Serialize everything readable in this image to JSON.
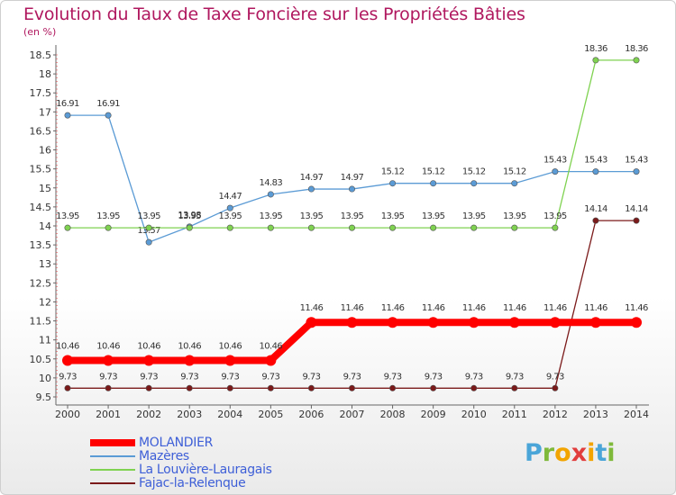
{
  "title": "Evolution du Taux de Taxe Foncière sur les Propriétés Bâties",
  "unit": "(en %)",
  "logo": "Proxiti",
  "chart_data": {
    "type": "line",
    "title": "Evolution du Taux de Taxe Foncière sur les Propriétés Bâties",
    "ylabel": "(en %)",
    "xlabel": "",
    "ylim": [
      9.5,
      18.5
    ],
    "yticks": [
      "9.5",
      "10",
      "10.5",
      "11",
      "11.5",
      "12",
      "12.5",
      "13",
      "13.5",
      "14",
      "14.5",
      "15",
      "15.5",
      "16",
      "16.5",
      "17",
      "17.5",
      "18",
      "18.5"
    ],
    "x": [
      "2000",
      "2001",
      "2002",
      "2003",
      "2004",
      "2005",
      "2006",
      "2007",
      "2008",
      "2009",
      "2010",
      "2011",
      "2012",
      "2013",
      "2014"
    ],
    "series": [
      {
        "name": "MOLANDIER",
        "color": "#ff0000",
        "bold": true,
        "values": [
          10.46,
          10.46,
          10.46,
          10.46,
          10.46,
          10.46,
          11.46,
          11.46,
          11.46,
          11.46,
          11.46,
          11.46,
          11.46,
          11.46,
          11.46
        ],
        "labels": [
          "10.46",
          "10.46",
          "10.46",
          "10.46",
          "10.46",
          "10.46",
          "11.46",
          "11.46",
          "11.46",
          "11.46",
          "11.46",
          "11.46",
          "11.46",
          "11.46",
          "11.46"
        ]
      },
      {
        "name": "Mazères",
        "color": "#5b9bd5",
        "values": [
          16.91,
          16.91,
          13.57,
          13.98,
          14.47,
          14.83,
          14.97,
          14.97,
          15.12,
          15.12,
          15.12,
          15.12,
          15.43,
          15.43,
          15.43
        ],
        "labels": [
          "16.91",
          "16.91",
          "13.57",
          "13.98",
          "14.47",
          "14.83",
          "14.97",
          "14.97",
          "15.12",
          "15.12",
          "15.12",
          "15.12",
          "15.43",
          "15.43",
          "15.43"
        ]
      },
      {
        "name": "La Louvière-Lauragais",
        "color": "#7fd250",
        "values": [
          13.95,
          13.95,
          13.95,
          13.95,
          13.95,
          13.95,
          13.95,
          13.95,
          13.95,
          13.95,
          13.95,
          13.95,
          13.95,
          18.36,
          18.36
        ],
        "labels": [
          "13.95",
          "13.95",
          "13.95",
          "13.95",
          "13.95",
          "13.95",
          "13.95",
          "13.95",
          "13.95",
          "13.95",
          "13.95",
          "13.95",
          "13.95",
          "18.36",
          "18.36"
        ]
      },
      {
        "name": "Fajac-la-Relenque",
        "color": "#7b1a1a",
        "values": [
          9.73,
          9.73,
          9.73,
          9.73,
          9.73,
          9.73,
          9.73,
          9.73,
          9.73,
          9.73,
          9.73,
          9.73,
          9.73,
          14.14,
          14.14
        ],
        "labels": [
          "9.73",
          "9.73",
          "9.73",
          "9.73",
          "9.73",
          "9.73",
          "9.73",
          "9.73",
          "9.73",
          "9.73",
          "9.73",
          "9.73",
          "9.73",
          "14.14",
          "14.14"
        ]
      }
    ],
    "legend": [
      "MOLANDIER",
      "Mazères",
      "La Louvière-Lauragais",
      "Fajac-la-Relenque"
    ],
    "grid": false,
    "legend_position": "bottom-left"
  }
}
